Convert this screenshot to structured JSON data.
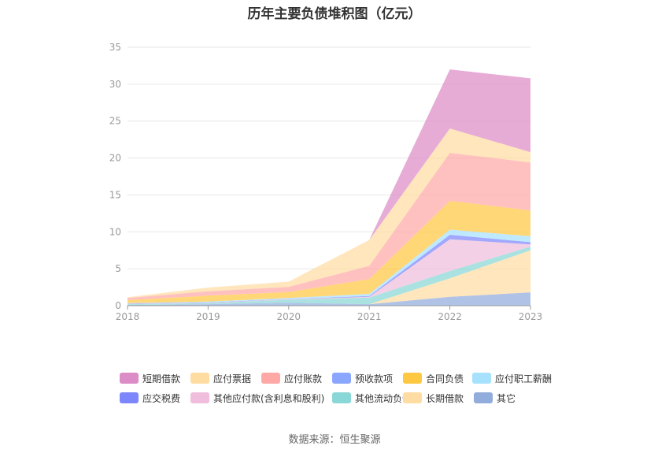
{
  "chart_data": {
    "type": "area",
    "stacked": true,
    "title": "历年主要负债堆积图（亿元）",
    "x": [
      "2018",
      "2019",
      "2020",
      "2021",
      "2022",
      "2023"
    ],
    "ylim": [
      0,
      35
    ],
    "yticks": [
      "0",
      "5",
      "10",
      "15",
      "20",
      "25",
      "30",
      "35"
    ],
    "grid": true,
    "legend_position": "bottom",
    "series": [
      {
        "name": "短期借款",
        "color": "#dc8cc6",
        "values": [
          0,
          0,
          0,
          0,
          8.0,
          10.0
        ]
      },
      {
        "name": "应付票据",
        "color": "#ffdca2",
        "values": [
          0.1,
          0.5,
          0.7,
          3.5,
          3.3,
          1.4
        ]
      },
      {
        "name": "应付账款",
        "color": "#ffa9a6",
        "values": [
          0.3,
          0.6,
          0.7,
          1.8,
          6.5,
          6.5
        ]
      },
      {
        "name": "预收款项",
        "color": "#8aa6ff",
        "values": [
          0,
          0,
          0,
          0,
          0,
          0
        ]
      },
      {
        "name": "合同负债",
        "color": "#ffc843",
        "values": [
          0.4,
          0.8,
          0.8,
          2.0,
          3.9,
          3.5
        ]
      },
      {
        "name": "应付职工薪酬",
        "color": "#a6e1fd",
        "values": [
          0.05,
          0.1,
          0.15,
          0.3,
          0.7,
          0.8
        ]
      },
      {
        "name": "应交税费",
        "color": "#7d86fc",
        "values": [
          0.05,
          0.05,
          0.05,
          0.1,
          0.6,
          0.3
        ]
      },
      {
        "name": "其他应付款(含利息和股利)",
        "color": "#f0bedc",
        "values": [
          0.05,
          0.05,
          0.05,
          0.1,
          4.3,
          0.3
        ]
      },
      {
        "name": "其他流动负债",
        "color": "#89d7d6",
        "values": [
          0.1,
          0.15,
          0.4,
          0.9,
          1.0,
          0.5
        ]
      },
      {
        "name": "长期借款",
        "color": "#ffdca2",
        "values": [
          0,
          0,
          0,
          0,
          2.5,
          5.7
        ]
      },
      {
        "name": "其它",
        "color": "#92acdc",
        "values": [
          0.1,
          0.2,
          0.4,
          0.2,
          1.2,
          1.8
        ]
      }
    ]
  },
  "footer": {
    "source": "数据来源：恒生聚源"
  }
}
